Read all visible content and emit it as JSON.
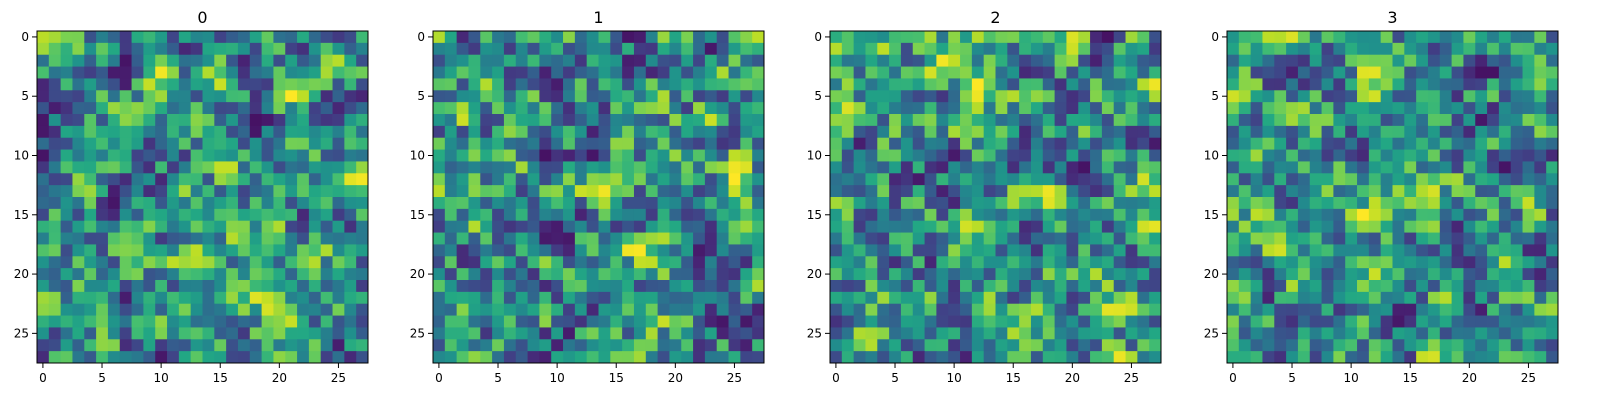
{
  "chart_data": [
    {
      "type": "heatmap",
      "title": "0",
      "rows": 28,
      "cols": 28,
      "xticks": [
        "0",
        "5",
        "10",
        "15",
        "20",
        "25"
      ],
      "yticks": [
        "0",
        "5",
        "10",
        "15",
        "20",
        "25"
      ],
      "xlim": [
        -0.5,
        27.5
      ],
      "ylim": [
        27.5,
        -0.5
      ],
      "colormap": "viridis",
      "values_note": "pixel values not printed; estimated random field in [0,1]"
    },
    {
      "type": "heatmap",
      "title": "1",
      "rows": 28,
      "cols": 28,
      "xticks": [
        "0",
        "5",
        "10",
        "15",
        "20",
        "25"
      ],
      "yticks": [
        "0",
        "5",
        "10",
        "15",
        "20",
        "25"
      ],
      "xlim": [
        -0.5,
        27.5
      ],
      "ylim": [
        27.5,
        -0.5
      ],
      "colormap": "viridis"
    },
    {
      "type": "heatmap",
      "title": "2",
      "rows": 28,
      "cols": 28,
      "xticks": [
        "0",
        "5",
        "10",
        "15",
        "20",
        "25"
      ],
      "yticks": [
        "0",
        "5",
        "10",
        "15",
        "20",
        "25"
      ],
      "xlim": [
        -0.5,
        27.5
      ],
      "ylim": [
        27.5,
        -0.5
      ],
      "colormap": "viridis"
    },
    {
      "type": "heatmap",
      "title": "3",
      "rows": 28,
      "cols": 28,
      "xticks": [
        "0",
        "5",
        "10",
        "15",
        "20",
        "25"
      ],
      "yticks": [
        "0",
        "5",
        "10",
        "15",
        "20",
        "25"
      ],
      "xlim": [
        -0.5,
        27.5
      ],
      "ylim": [
        27.5,
        -0.5
      ],
      "colormap": "viridis"
    }
  ]
}
